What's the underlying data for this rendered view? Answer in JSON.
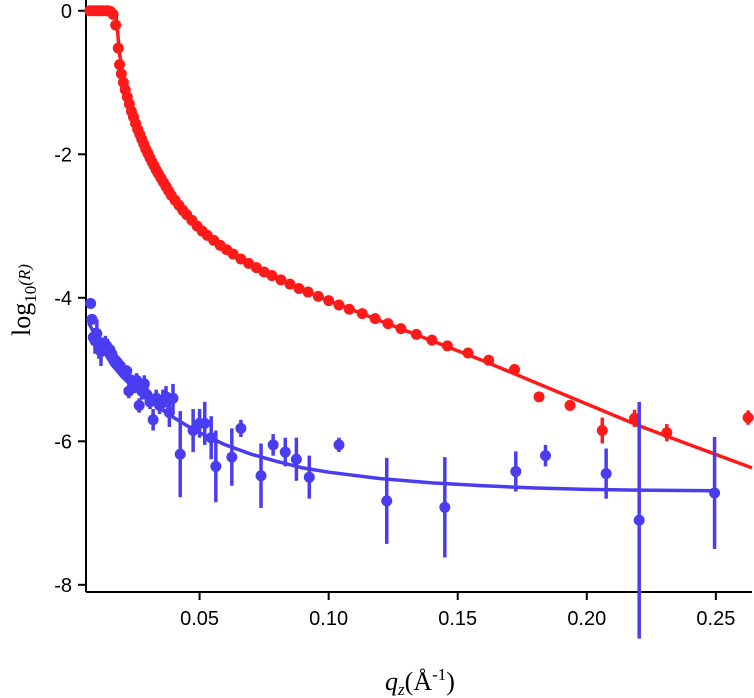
{
  "chart_data": {
    "type": "scatter",
    "xlabel": {
      "main": "q",
      "sub": "z",
      "paren": "(Å",
      "sup": "-1",
      "close": ")"
    },
    "ylabel": {
      "main": "log",
      "sub": "10",
      "paren": "(R)"
    },
    "xlim": [
      0.006,
      0.264
    ],
    "ylim": [
      -8.1,
      0.15
    ],
    "x_ticks": [
      {
        "value": 0.05,
        "label": "0.05"
      },
      {
        "value": 0.1,
        "label": "0.10"
      },
      {
        "value": 0.15,
        "label": "0.15"
      },
      {
        "value": 0.2,
        "label": "0.20"
      },
      {
        "value": 0.25,
        "label": "0.25"
      }
    ],
    "y_ticks": [
      {
        "value": 0,
        "label": "0"
      },
      {
        "value": -2,
        "label": "-2"
      },
      {
        "value": -4,
        "label": "-4"
      },
      {
        "value": -6,
        "label": "-6"
      },
      {
        "value": -8,
        "label": "-8"
      }
    ],
    "series": [
      {
        "color": "#ff1a1a",
        "points": [
          [
            0.0075,
            0.0,
            0
          ],
          [
            0.0085,
            0.0,
            0
          ],
          [
            0.0095,
            0.0,
            0
          ],
          [
            0.0105,
            0.0,
            0
          ],
          [
            0.0115,
            0.0,
            0
          ],
          [
            0.0125,
            0.0,
            0
          ],
          [
            0.0135,
            0.0,
            0
          ],
          [
            0.0145,
            0.0,
            0
          ],
          [
            0.0155,
            -0.01,
            0
          ],
          [
            0.0165,
            -0.05,
            0
          ],
          [
            0.0175,
            -0.2,
            0
          ],
          [
            0.0185,
            -0.52,
            0
          ],
          [
            0.019,
            -0.75,
            0
          ],
          [
            0.0197,
            -0.88,
            0
          ],
          [
            0.0205,
            -1.0,
            0
          ],
          [
            0.0212,
            -1.1,
            0
          ],
          [
            0.022,
            -1.2,
            0
          ],
          [
            0.0228,
            -1.3,
            0
          ],
          [
            0.0236,
            -1.4,
            0
          ],
          [
            0.0244,
            -1.48,
            0
          ],
          [
            0.0252,
            -1.57,
            0
          ],
          [
            0.026,
            -1.65,
            0
          ],
          [
            0.0268,
            -1.72,
            0
          ],
          [
            0.0276,
            -1.79,
            0
          ],
          [
            0.0284,
            -1.86,
            0
          ],
          [
            0.0292,
            -1.93,
            0
          ],
          [
            0.03,
            -1.99,
            0
          ],
          [
            0.0308,
            -2.05,
            0
          ],
          [
            0.0316,
            -2.11,
            0
          ],
          [
            0.0324,
            -2.16,
            0
          ],
          [
            0.0332,
            -2.22,
            0
          ],
          [
            0.034,
            -2.27,
            0
          ],
          [
            0.035,
            -2.33,
            0
          ],
          [
            0.036,
            -2.39,
            0
          ],
          [
            0.037,
            -2.45,
            0
          ],
          [
            0.038,
            -2.51,
            0
          ],
          [
            0.039,
            -2.57,
            0
          ],
          [
            0.0405,
            -2.64,
            0
          ],
          [
            0.042,
            -2.71,
            0
          ],
          [
            0.0435,
            -2.78,
            0
          ],
          [
            0.045,
            -2.84,
            0
          ],
          [
            0.047,
            -2.92,
            0
          ],
          [
            0.049,
            -3.0,
            0
          ],
          [
            0.051,
            -3.07,
            0
          ],
          [
            0.053,
            -3.13,
            0
          ],
          [
            0.0555,
            -3.2,
            0
          ],
          [
            0.058,
            -3.27,
            0
          ],
          [
            0.0605,
            -3.33,
            0
          ],
          [
            0.063,
            -3.39,
            0
          ],
          [
            0.066,
            -3.46,
            0
          ],
          [
            0.069,
            -3.52,
            0
          ],
          [
            0.072,
            -3.58,
            0
          ],
          [
            0.075,
            -3.64,
            0
          ],
          [
            0.078,
            -3.69,
            0
          ],
          [
            0.0815,
            -3.75,
            0
          ],
          [
            0.085,
            -3.81,
            0
          ],
          [
            0.0885,
            -3.87,
            0
          ],
          [
            0.092,
            -3.92,
            0
          ],
          [
            0.096,
            -3.98,
            0
          ],
          [
            0.1,
            -4.04,
            0
          ],
          [
            0.104,
            -4.1,
            0
          ],
          [
            0.108,
            -4.16,
            0
          ],
          [
            0.113,
            -4.22,
            0
          ],
          [
            0.118,
            -4.29,
            0
          ],
          [
            0.123,
            -4.36,
            0
          ],
          [
            0.128,
            -4.43,
            0
          ],
          [
            0.134,
            -4.51,
            0
          ],
          [
            0.14,
            -4.59,
            0
          ],
          [
            0.146,
            -4.67,
            0
          ],
          [
            0.154,
            -4.77,
            0
          ],
          [
            0.162,
            -4.87,
            0
          ],
          [
            0.172,
            -5.0,
            0
          ],
          [
            0.1815,
            -5.38,
            0.07
          ],
          [
            0.1935,
            -5.5,
            0.06
          ],
          [
            0.206,
            -5.85,
            0.18
          ],
          [
            0.2185,
            -5.68,
            0.12
          ],
          [
            0.231,
            -5.88,
            0.12
          ],
          [
            0.2625,
            -5.67,
            0.1
          ]
        ],
        "fit": [
          [
            0.0175,
            0.0
          ],
          [
            0.019,
            -0.6
          ],
          [
            0.0205,
            -0.95
          ],
          [
            0.022,
            -1.2
          ],
          [
            0.024,
            -1.45
          ],
          [
            0.027,
            -1.74
          ],
          [
            0.03,
            -1.99
          ],
          [
            0.034,
            -2.27
          ],
          [
            0.038,
            -2.51
          ],
          [
            0.045,
            -2.84
          ],
          [
            0.055,
            -3.19
          ],
          [
            0.065,
            -3.44
          ],
          [
            0.075,
            -3.64
          ],
          [
            0.085,
            -3.81
          ],
          [
            0.1,
            -4.04
          ],
          [
            0.12,
            -4.32
          ],
          [
            0.14,
            -4.6
          ],
          [
            0.16,
            -4.88
          ],
          [
            0.18,
            -5.18
          ],
          [
            0.2,
            -5.48
          ],
          [
            0.22,
            -5.78
          ],
          [
            0.24,
            -6.05
          ],
          [
            0.264,
            -6.37
          ]
        ]
      },
      {
        "color": "#4a3cf0",
        "points": [
          [
            0.0078,
            -4.08,
            0
          ],
          [
            0.0083,
            -4.3,
            0
          ],
          [
            0.0088,
            -4.55,
            0
          ],
          [
            0.0095,
            -4.6,
            0.18
          ],
          [
            0.0102,
            -4.5,
            0.2
          ],
          [
            0.011,
            -4.7,
            0.15
          ],
          [
            0.0118,
            -4.75,
            0.2
          ],
          [
            0.0126,
            -4.68,
            0.12
          ],
          [
            0.0135,
            -4.65,
            0.12
          ],
          [
            0.0143,
            -4.7,
            0.13
          ],
          [
            0.0152,
            -4.72,
            0.1
          ],
          [
            0.016,
            -4.78,
            0.1
          ],
          [
            0.0168,
            -4.85,
            0.1
          ],
          [
            0.0176,
            -4.88,
            0.1
          ],
          [
            0.0185,
            -4.92,
            0.1
          ],
          [
            0.0193,
            -4.95,
            0.1
          ],
          [
            0.0202,
            -5.0,
            0.08
          ],
          [
            0.021,
            -5.05,
            0.08
          ],
          [
            0.0218,
            -5.02,
            0.08
          ],
          [
            0.0226,
            -5.3,
            0.1
          ],
          [
            0.0236,
            -5.15,
            0.08
          ],
          [
            0.0246,
            -5.25,
            0.08
          ],
          [
            0.0256,
            -5.15,
            0.1
          ],
          [
            0.0266,
            -5.5,
            0.1
          ],
          [
            0.0276,
            -5.3,
            0.12
          ],
          [
            0.0286,
            -5.2,
            0.12
          ],
          [
            0.0296,
            -5.35,
            0.12
          ],
          [
            0.0308,
            -5.45,
            0.1
          ],
          [
            0.032,
            -5.7,
            0.15
          ],
          [
            0.0332,
            -5.4,
            0.12
          ],
          [
            0.0345,
            -5.5,
            0.12
          ],
          [
            0.0358,
            -5.42,
            0.14
          ],
          [
            0.037,
            -5.38,
            0.15
          ],
          [
            0.0383,
            -5.6,
            0.2
          ],
          [
            0.0397,
            -5.4,
            0.2
          ],
          [
            0.0425,
            -6.18,
            0.6
          ],
          [
            0.0475,
            -5.85,
            0.3
          ],
          [
            0.05,
            -5.75,
            0.2
          ],
          [
            0.052,
            -5.75,
            0.3
          ],
          [
            0.0545,
            -5.95,
            0.3
          ],
          [
            0.0563,
            -6.35,
            0.5
          ],
          [
            0.0625,
            -6.22,
            0.4
          ],
          [
            0.066,
            -5.82,
            0.12
          ],
          [
            0.0738,
            -6.48,
            0.45
          ],
          [
            0.0785,
            -6.05,
            0.15
          ],
          [
            0.0832,
            -6.15,
            0.2
          ],
          [
            0.0875,
            -6.25,
            0.3
          ],
          [
            0.0925,
            -6.5,
            0.3
          ],
          [
            0.104,
            -6.05,
            0.1
          ],
          [
            0.1225,
            -6.83,
            0.6
          ],
          [
            0.145,
            -6.92,
            0.7
          ],
          [
            0.1725,
            -6.42,
            0.28
          ],
          [
            0.184,
            -6.2,
            0.15
          ],
          [
            0.2075,
            -6.45,
            0.35
          ],
          [
            0.2203,
            -7.1,
            1.65
          ],
          [
            0.2495,
            -6.72,
            0.78
          ]
        ],
        "fit": [
          [
            0.007,
            -4.35
          ],
          [
            0.01,
            -4.55
          ],
          [
            0.013,
            -4.75
          ],
          [
            0.016,
            -4.93
          ],
          [
            0.02,
            -5.1
          ],
          [
            0.025,
            -5.27
          ],
          [
            0.03,
            -5.42
          ],
          [
            0.035,
            -5.55
          ],
          [
            0.04,
            -5.67
          ],
          [
            0.045,
            -5.78
          ],
          [
            0.05,
            -5.88
          ],
          [
            0.06,
            -6.05
          ],
          [
            0.07,
            -6.18
          ],
          [
            0.08,
            -6.28
          ],
          [
            0.09,
            -6.37
          ],
          [
            0.1,
            -6.43
          ],
          [
            0.12,
            -6.52
          ],
          [
            0.14,
            -6.58
          ],
          [
            0.16,
            -6.62
          ],
          [
            0.18,
            -6.65
          ],
          [
            0.2,
            -6.67
          ],
          [
            0.22,
            -6.68
          ],
          [
            0.25,
            -6.69
          ]
        ]
      }
    ]
  }
}
